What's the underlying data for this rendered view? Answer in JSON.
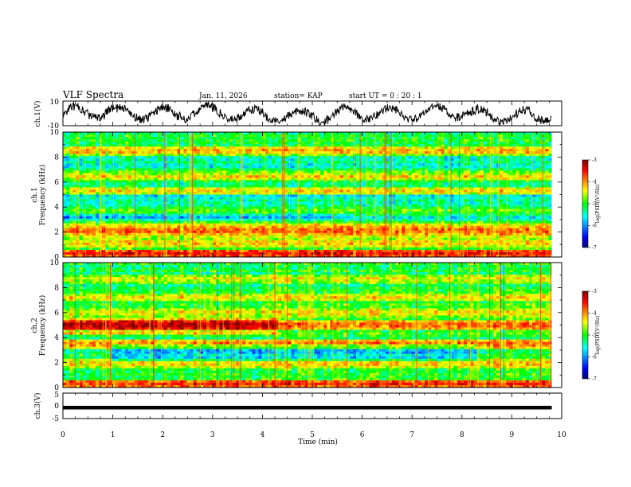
{
  "header": {
    "title": "VLF Spectra",
    "date": "Jan. 11, 2026",
    "station": "station= KAP",
    "start_ut": "start UT =  0 : 20 : 1"
  },
  "chart_data": [
    {
      "type": "line",
      "name": "ch.1 waveform",
      "ylabel": "ch.1(V)",
      "ylim": [
        -10,
        10
      ],
      "yticks": [
        "10",
        "-10"
      ],
      "x_range_min": [
        0,
        9.8
      ],
      "series_description": "noisy waveform envelope oscillating roughly between -8 and 8 V"
    },
    {
      "type": "heatmap",
      "name": "ch.1 spectrogram",
      "ylabel": "ch.1\nFrequency (kHz)",
      "ylabel_line1": "ch.1",
      "ylabel_line2": "Frequency (kHz)",
      "ylim": [
        0,
        10
      ],
      "yticks": [
        "0",
        "2",
        "4",
        "6",
        "8",
        "10"
      ],
      "x_range_min": [
        0,
        9.8
      ],
      "colorbar": {
        "label": "log(PSD)(V²/Hz)",
        "range": [
          -7,
          -3
        ],
        "ticks": [
          "-3",
          "-4",
          "-5",
          "-6",
          "-7"
        ]
      },
      "bands_khz": [
        {
          "f": 0.3,
          "level": -3.5
        },
        {
          "f": 1.1,
          "level": -4.2
        },
        {
          "f": 1.7,
          "level": -4.4
        },
        {
          "f": 2.1,
          "level": -3.8
        },
        {
          "f": 2.5,
          "level": -4.3
        },
        {
          "f": 3.7,
          "level": -4.5
        },
        {
          "f": 5.3,
          "level": -4.3
        },
        {
          "f": 6.5,
          "level": -4.2
        },
        {
          "f": 8.5,
          "level": -4.1
        }
      ]
    },
    {
      "type": "heatmap",
      "name": "ch.2 spectrogram",
      "ylabel_line1": "ch.2",
      "ylabel_line2": "Frequency (kHz)",
      "ylim": [
        0,
        10
      ],
      "yticks": [
        "0",
        "2",
        "4",
        "6",
        "8",
        "10"
      ],
      "x_range_min": [
        0,
        9.8
      ],
      "colorbar": {
        "label": "log(PSD)(V²/Hz)",
        "range": [
          -7,
          -3
        ],
        "ticks": [
          "-3",
          "-4",
          "-5",
          "-6",
          "-7"
        ]
      },
      "bands_khz": [
        {
          "f": 0.3,
          "level": -3.6
        },
        {
          "f": 1.9,
          "level": -4.2
        },
        {
          "f": 3.5,
          "level": -3.9
        },
        {
          "f": 5.0,
          "level": -3.8
        },
        {
          "f": 6.0,
          "level": -4.3
        },
        {
          "f": 7.2,
          "level": -4.3
        },
        {
          "f": 8.7,
          "level": -4.4
        }
      ]
    },
    {
      "type": "line",
      "name": "ch.3 signal",
      "ylabel": "ch.3(V)",
      "ylim": [
        -5,
        5
      ],
      "yticks": [
        "5",
        "0",
        "-5"
      ],
      "level_band": [
        -1.1,
        -0.3
      ],
      "x_range_min": [
        0,
        9.8
      ]
    }
  ],
  "x_axis": {
    "label": "Time  (min)",
    "range": [
      0,
      10
    ],
    "ticks": [
      "0",
      "1",
      "2",
      "3",
      "4",
      "5",
      "6",
      "7",
      "8",
      "9",
      "10"
    ]
  }
}
